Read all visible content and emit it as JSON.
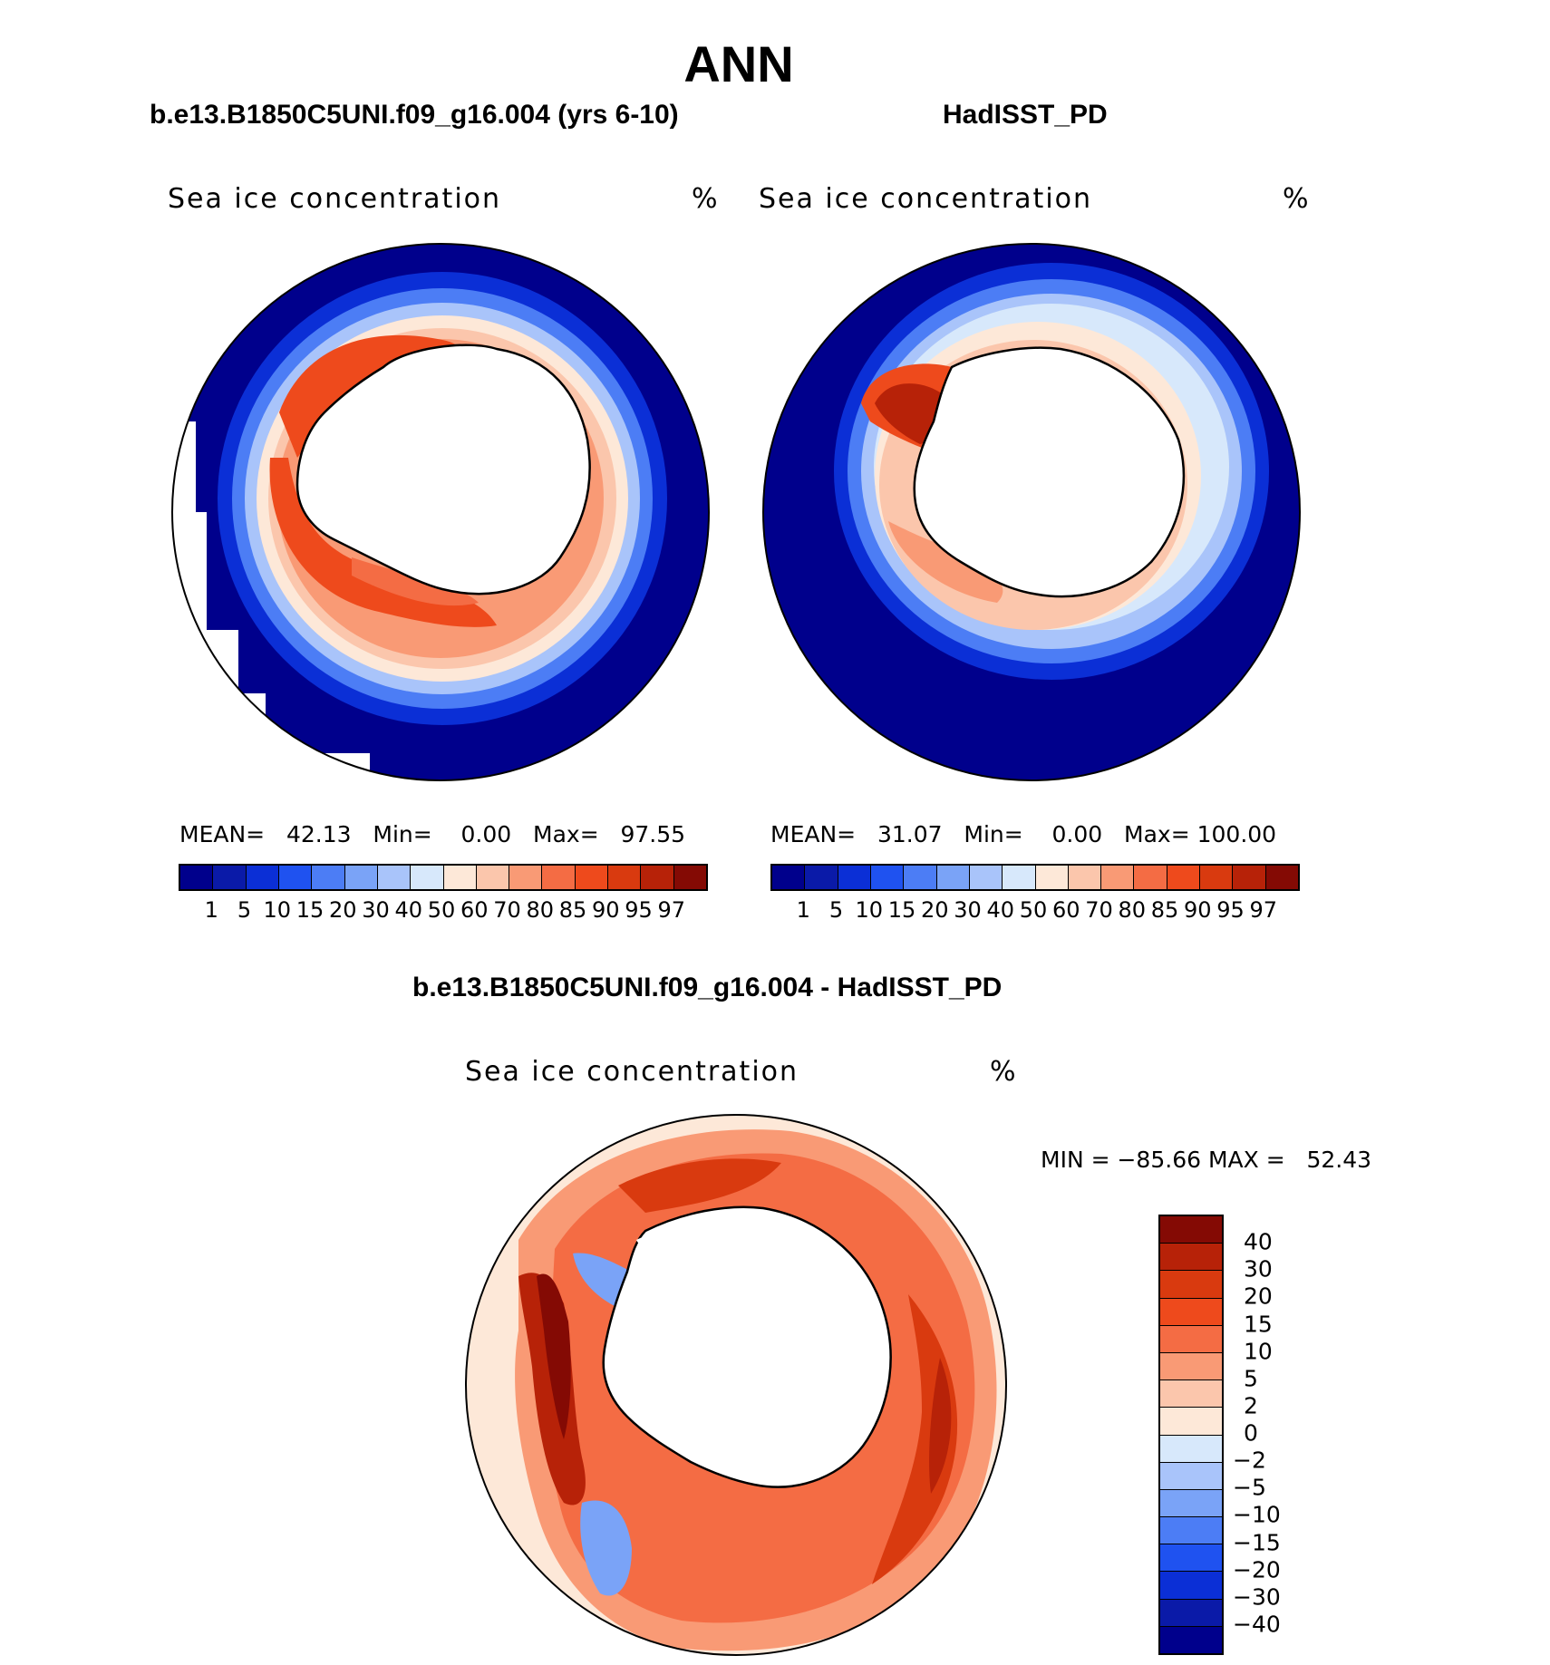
{
  "figure": {
    "title": "ANN",
    "panel1_title": "b.e13.B1850C5UNI.f09_g16.004 (yrs 6-10)",
    "panel2_title": "HadISST_PD",
    "diff_title": "b.e13.B1850C5UNI.f09_g16.004 - HadISST_PD"
  },
  "panels": [
    {
      "label": "Sea ice concentration",
      "units": "%",
      "mean_label": "MEAN=",
      "mean_value": "42.13",
      "min_label": "Min=",
      "min_value": "0.00",
      "max_label": "Max=",
      "max_value": "97.55"
    },
    {
      "label": "Sea ice concentration",
      "units": "%",
      "mean_label": "MEAN=",
      "mean_value": "31.07",
      "min_label": "Min=",
      "min_value": "0.00",
      "max_label": "Max=",
      "max_value": "100.00"
    }
  ],
  "diff_panel": {
    "label": "Sea ice concentration",
    "units": "%",
    "minmax": "MIN = −85.66 MAX =   52.43"
  },
  "colorbar_abs": {
    "labels": [
      "1",
      "5",
      "10",
      "15",
      "20",
      "30",
      "40",
      "50",
      "60",
      "70",
      "80",
      "85",
      "90",
      "95",
      "97"
    ],
    "colors": [
      "#00008c",
      "#0a1aa8",
      "#0b2fd6",
      "#1f52f0",
      "#4c7df5",
      "#7aa3f7",
      "#a9c4fa",
      "#d7e8fb",
      "#fde8d8",
      "#fbc6ac",
      "#f99a75",
      "#f46c44",
      "#ee4a1c",
      "#d93a0f",
      "#b72208",
      "#840a04"
    ]
  },
  "colorbar_diff": {
    "labels": [
      "40",
      "30",
      "20",
      "15",
      "10",
      "5",
      "2",
      "0",
      "−2",
      "−5",
      "−10",
      "−15",
      "−20",
      "−30",
      "−40"
    ],
    "colors": [
      "#840a04",
      "#b72208",
      "#d93a0f",
      "#ee4a1c",
      "#f46c44",
      "#f99a75",
      "#fbc6ac",
      "#fde8d8",
      "#d7e8fb",
      "#a9c4fa",
      "#7aa3f7",
      "#4c7df5",
      "#1f52f0",
      "#0b2fd6",
      "#0a1aa8",
      "#00008c"
    ]
  }
}
